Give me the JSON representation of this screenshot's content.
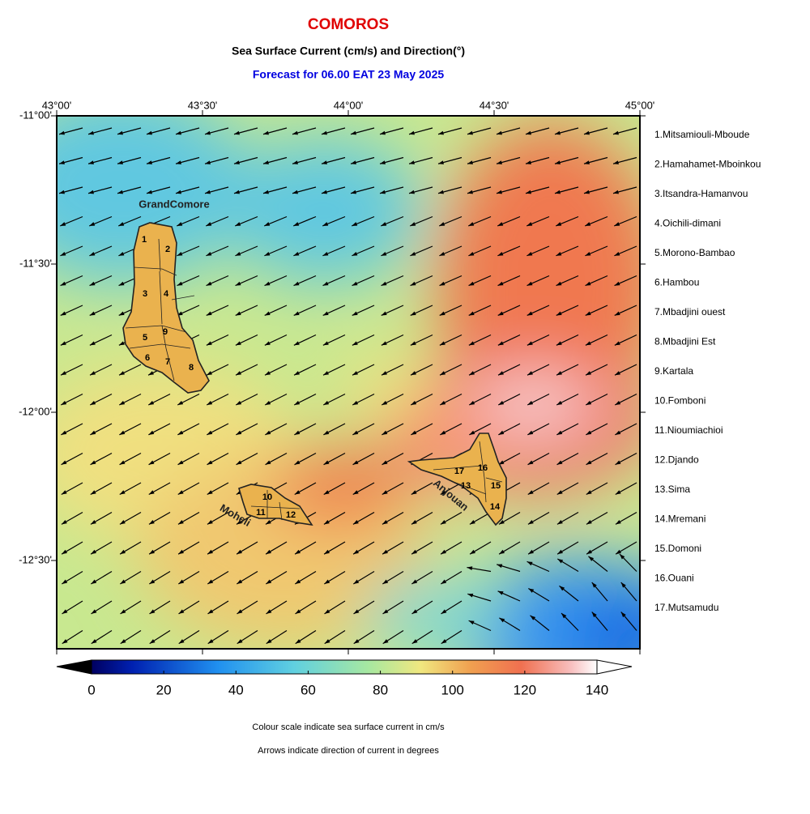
{
  "header": {
    "title": "COMOROS",
    "subtitle": "Sea Surface Current (cm/s) and Direction(°)",
    "forecast": "Forecast for  06.00 EAT 23 May 2025"
  },
  "axes": {
    "top": [
      "43°00'",
      "43°30'",
      "44°00'",
      "44°30'",
      "45°00'"
    ],
    "left": [
      "-11°00'",
      "-11°30'",
      "-12°00'",
      "-12°30'"
    ]
  },
  "islands": [
    "GrandComore",
    "Moheli",
    "Anjouan"
  ],
  "regions": [
    "1",
    "2",
    "3",
    "4",
    "5",
    "6",
    "7",
    "8",
    "9",
    "10",
    "11",
    "12",
    "13",
    "14",
    "15",
    "16",
    "17"
  ],
  "legend": [
    "1.Mitsamiouli-Mboude",
    "2.Hamahamet-Mboinkou",
    "3.Itsandra-Hamanvou",
    "4.Oichili-dimani",
    "5.Morono-Bambao",
    "6.Hambou",
    "7.Mbadjini ouest",
    "8.Mbadjini Est",
    "9.Kartala",
    "10.Fomboni",
    "11.Nioumiachioi",
    "12.Djando",
    "13.Sima",
    "14.Mremani",
    "15.Domoni",
    "16.Ouani",
    "17.Mutsamudu"
  ],
  "colorbar": {
    "ticks": [
      0,
      20,
      40,
      60,
      80,
      100,
      120,
      140
    ]
  },
  "notes": [
    "Colour scale indicate sea surface current in cm/s",
    "Arrows indicate direction of current in degrees"
  ]
}
